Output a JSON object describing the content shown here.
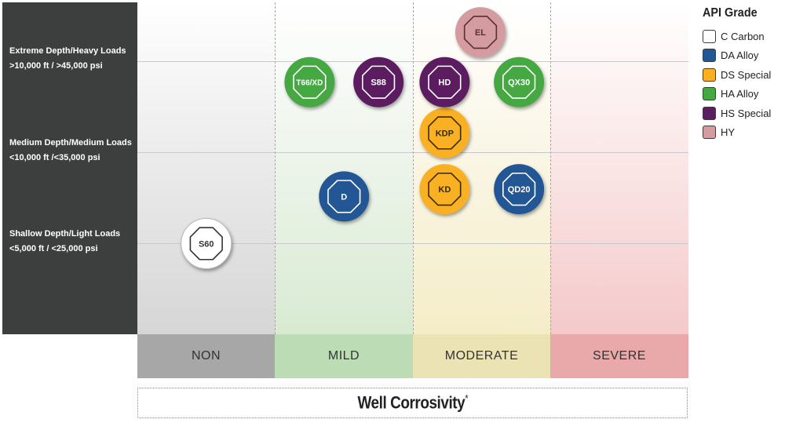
{
  "chart_data": {
    "type": "scatter",
    "title": "",
    "xlabel": "Well Corrosivity",
    "xlabel_suffix": "*",
    "x_categories": [
      "NON",
      "MILD",
      "MODERATE",
      "SEVERE"
    ],
    "x_category_colors": [
      "#a7a7a7",
      "#bcdcb5",
      "#ece3b4",
      "#e9a8a9"
    ],
    "y_categories": [
      {
        "name": "Shallow Depth/Light Loads",
        "detail": "<5,000 ft / <25,000 psi"
      },
      {
        "name": "Medium Depth/Medium Loads",
        "detail": "<10,000 ft /<35,000 psi"
      },
      {
        "name": "Extreme Depth/Heavy Loads",
        "detail": ">10,000 ft / >45,000 psi"
      }
    ],
    "x_range": [
      0,
      4
    ],
    "y_range": [
      0,
      3.66
    ],
    "legend_title": "API Grade",
    "legend_position": "right",
    "grades": [
      {
        "key": "C",
        "name": "Carbon",
        "color": "#ffffff",
        "text_color": "#333333"
      },
      {
        "key": "DA",
        "name": "Alloy",
        "color": "#215794",
        "text_color": "#ffffff"
      },
      {
        "key": "DS",
        "name": "Special",
        "color": "#f9b020",
        "text_color": "#3a2a00"
      },
      {
        "key": "HA",
        "name": "Alloy",
        "color": "#44a843",
        "text_color": "#ffffff"
      },
      {
        "key": "HS",
        "name": "Special",
        "color": "#5b1f61",
        "text_color": "#ffffff"
      },
      {
        "key": "HY",
        "name": "",
        "color": "#d49ba0",
        "text_color": "#5a2e30"
      }
    ],
    "points": [
      {
        "label": "S60",
        "grade": "C",
        "x": 0.5,
        "y": 1.0
      },
      {
        "label": "D",
        "grade": "DA",
        "x": 1.5,
        "y": 1.52
      },
      {
        "label": "KD",
        "grade": "DS",
        "x": 2.23,
        "y": 1.6
      },
      {
        "label": "QD20",
        "grade": "DA",
        "x": 2.77,
        "y": 1.6
      },
      {
        "label": "KDP",
        "grade": "DS",
        "x": 2.23,
        "y": 2.22
      },
      {
        "label": "T66/XD",
        "grade": "HA",
        "x": 1.25,
        "y": 2.78
      },
      {
        "label": "S88",
        "grade": "HS",
        "x": 1.75,
        "y": 2.78
      },
      {
        "label": "HD",
        "grade": "HS",
        "x": 2.23,
        "y": 2.78
      },
      {
        "label": "QX30",
        "grade": "HA",
        "x": 2.77,
        "y": 2.78
      },
      {
        "label": "EL",
        "grade": "HY",
        "x": 2.49,
        "y": 3.33
      }
    ]
  }
}
